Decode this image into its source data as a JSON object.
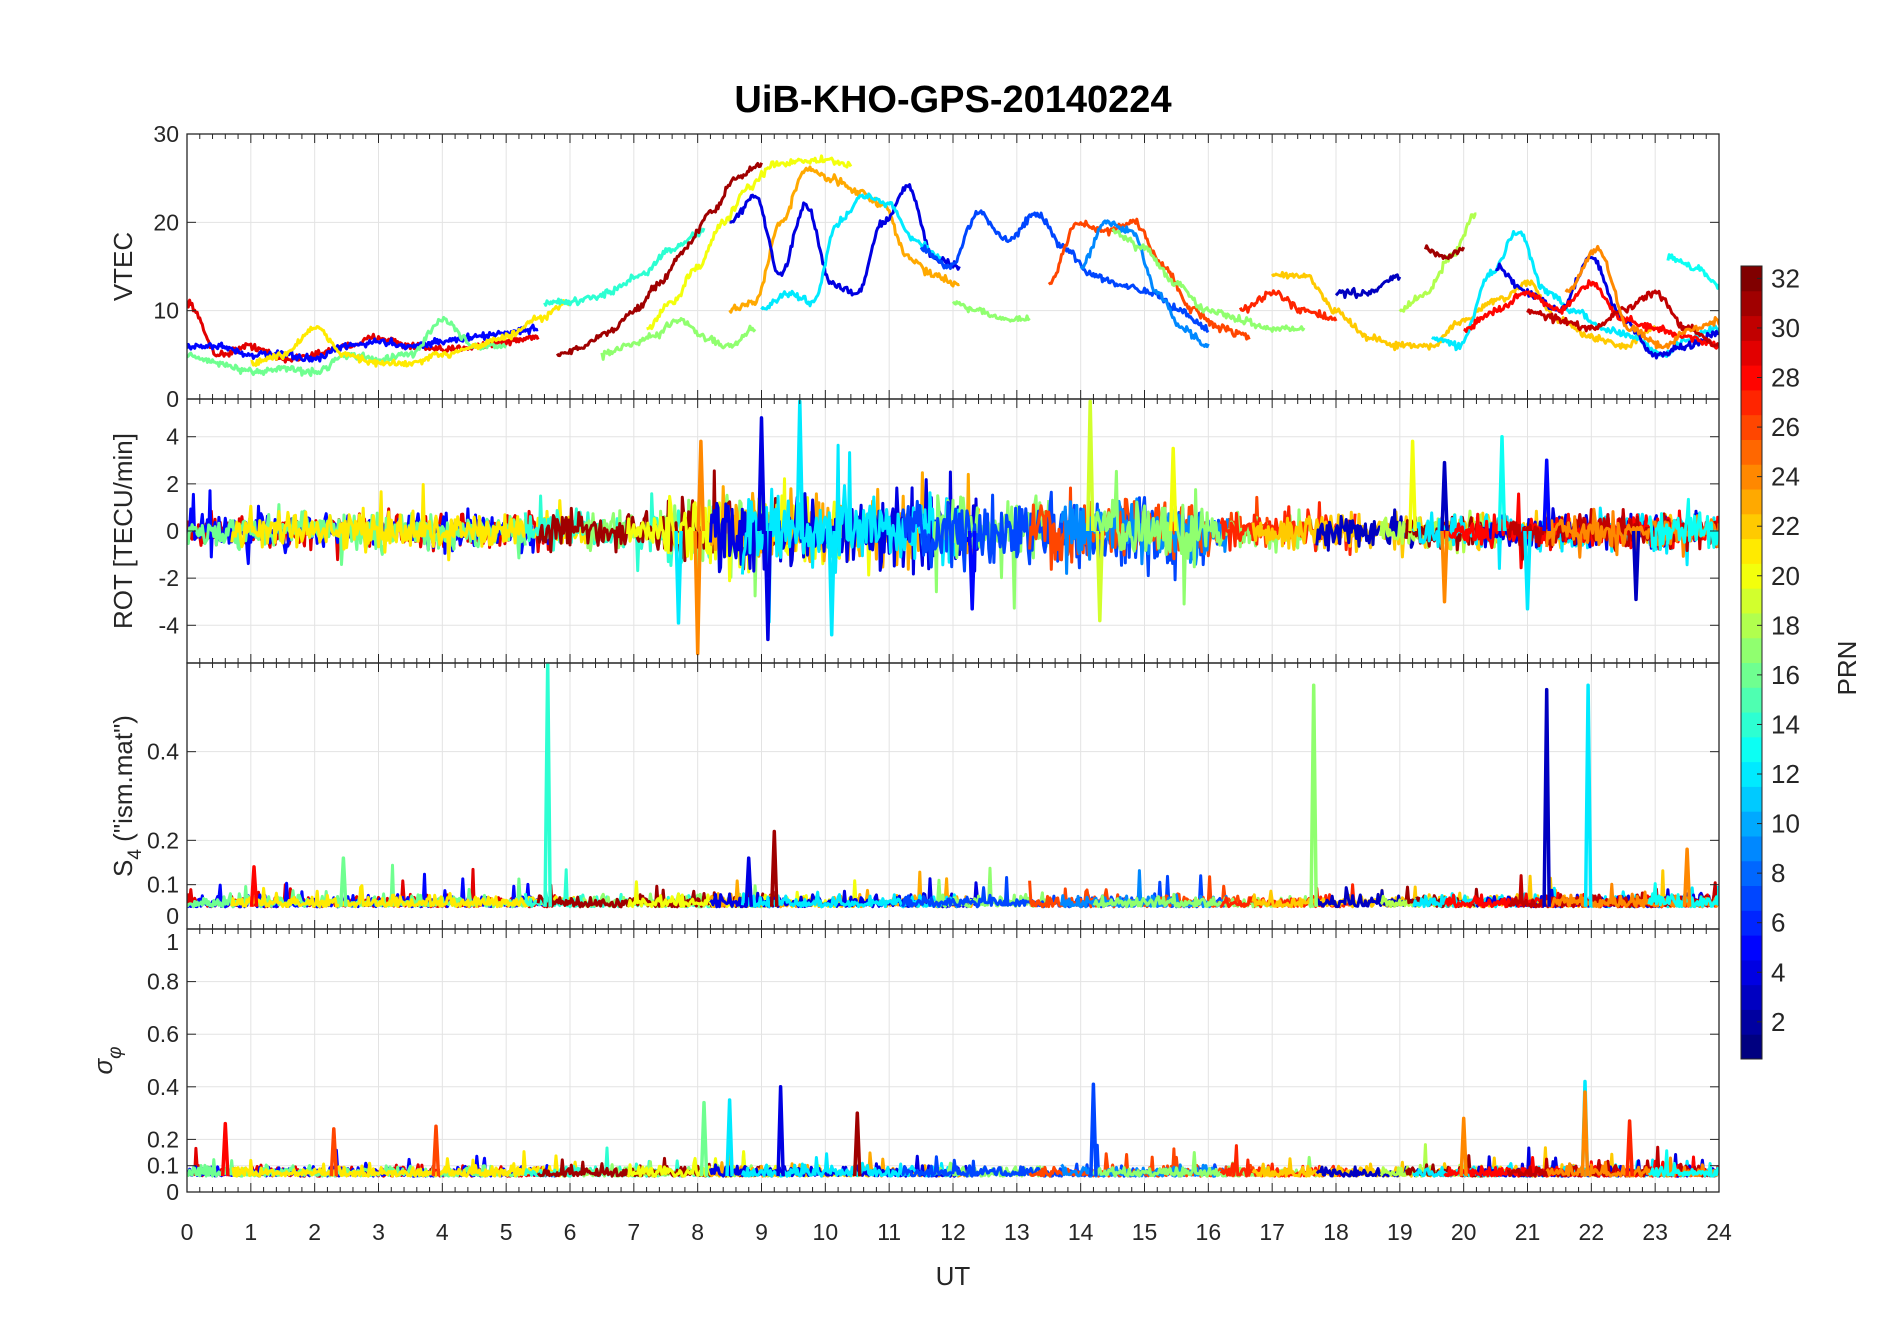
{
  "chart_data": {
    "type": "line",
    "title": "UiB-KHO-GPS-20140224",
    "xlabel": "UT",
    "xlim": [
      0,
      24
    ],
    "xticks": [
      0,
      1,
      2,
      3,
      4,
      5,
      6,
      7,
      8,
      9,
      10,
      11,
      12,
      13,
      14,
      15,
      16,
      17,
      18,
      19,
      20,
      21,
      22,
      23,
      24
    ],
    "grid": true,
    "colorbar": {
      "label": "PRN",
      "range": [
        1,
        32
      ],
      "levels": 32,
      "colormap": "jet",
      "ticks": [
        2,
        4,
        6,
        8,
        10,
        12,
        14,
        16,
        18,
        20,
        22,
        24,
        26,
        28,
        30,
        32
      ],
      "placement": "right"
    },
    "panels": [
      {
        "name": "VTEC",
        "ylabel": "VTEC",
        "ylim": [
          0,
          30
        ],
        "yticks": [
          0,
          10,
          20,
          30
        ]
      },
      {
        "name": "ROT",
        "ylabel": "ROT [TECU/min]",
        "ylim": [
          -5.6,
          5.6
        ],
        "yticks": [
          -4,
          -2,
          0,
          2,
          4
        ],
        "noise_level": 0.6,
        "active_noise_level": 1.2,
        "active_window": [
          7.5,
          16
        ]
      },
      {
        "name": "S4",
        "ylabel": "S",
        "ylabel_sub": "4",
        "ylabel_suffix": " (\"ism.mat\")",
        "ylim": [
          0,
          0.6
        ],
        "yticks": [
          0,
          0.1,
          0.2,
          0.4
        ],
        "baseline": 0.05,
        "noise_level": 0.02
      },
      {
        "name": "sigma_phi",
        "ylabel": "σ",
        "ylabel_sub": "φ",
        "ylim": [
          0,
          1
        ],
        "yticks": [
          0,
          0.1,
          0.2,
          0.4,
          0.6,
          0.8,
          1
        ],
        "baseline": 0.06,
        "noise_level": 0.03
      }
    ],
    "vtec_arcs": [
      {
        "prn": 29,
        "t0": 0.0,
        "step": 0.5,
        "values": [
          11,
          5,
          6,
          4.5,
          5,
          6,
          7,
          6,
          5.5,
          6,
          6.5,
          7
        ]
      },
      {
        "prn": 5,
        "t0": 0.0,
        "step": 0.5,
        "values": [
          6,
          6,
          5,
          5,
          4.5,
          6,
          6.5,
          6,
          6.5,
          7,
          7.5,
          8
        ]
      },
      {
        "prn": 16,
        "t0": 0.0,
        "step": 0.5,
        "values": [
          5,
          4,
          3,
          3.5,
          3,
          5,
          4.5,
          5,
          9,
          6,
          6
        ]
      },
      {
        "prn": 21,
        "t0": 1.0,
        "step": 0.5,
        "values": [
          4,
          5,
          8,
          5,
          4,
          4,
          5,
          6,
          7,
          9,
          11
        ]
      },
      {
        "prn": 14,
        "t0": 5.6,
        "step": 0.5,
        "values": [
          11,
          11,
          12,
          14,
          17,
          19
        ]
      },
      {
        "prn": 17,
        "t0": 6.5,
        "step": 0.4,
        "values": [
          5,
          6,
          7,
          9,
          7,
          6,
          8
        ]
      },
      {
        "prn": 31,
        "t0": 5.8,
        "step": 0.4,
        "values": [
          5,
          6,
          7.5,
          10,
          13,
          17,
          21,
          25,
          26.5
        ]
      },
      {
        "prn": 20,
        "t0": 7.2,
        "step": 0.4,
        "values": [
          8,
          11,
          15,
          20,
          24,
          26.5,
          27,
          27,
          26.5
        ]
      },
      {
        "prn": 23,
        "t0": 8.5,
        "step": 0.4,
        "values": [
          10,
          11,
          20,
          26,
          25,
          23.5,
          22,
          16,
          14,
          13
        ]
      },
      {
        "prn": 4,
        "t0": 8.5,
        "step": 0.4,
        "values": [
          20,
          23,
          14,
          22,
          13,
          12,
          20,
          24,
          16,
          15
        ]
      },
      {
        "prn": 12,
        "t0": 9.0,
        "step": 0.4,
        "values": [
          10,
          12,
          11,
          20,
          23,
          22,
          18,
          16
        ]
      },
      {
        "prn": 17,
        "t0": 12.0,
        "step": 0.4,
        "values": [
          11,
          10,
          9,
          9
        ]
      },
      {
        "prn": 7,
        "t0": 11.5,
        "step": 0.45,
        "values": [
          17,
          15,
          21,
          18,
          21,
          17,
          14,
          13,
          12,
          10,
          8
        ]
      },
      {
        "prn": 26,
        "t0": 13.5,
        "step": 0.45,
        "values": [
          13,
          20,
          19,
          20,
          15,
          10,
          8,
          7
        ]
      },
      {
        "prn": 9,
        "t0": 14.0,
        "step": 0.4,
        "values": [
          15,
          20,
          19,
          12,
          8,
          6
        ]
      },
      {
        "prn": 17,
        "t0": 14.5,
        "step": 0.5,
        "values": [
          19,
          17,
          13,
          10,
          9,
          8,
          8
        ]
      },
      {
        "prn": 27,
        "t0": 16.5,
        "step": 0.5,
        "values": [
          10,
          12,
          10,
          9
        ]
      },
      {
        "prn": 22,
        "t0": 17.0,
        "step": 0.5,
        "values": [
          14,
          14,
          10,
          7,
          6,
          6,
          9,
          11,
          13,
          9,
          7,
          6,
          8
        ]
      },
      {
        "prn": 3,
        "t0": 18.0,
        "step": 0.5,
        "values": [
          12,
          12,
          14
        ]
      },
      {
        "prn": 18,
        "t0": 19.0,
        "step": 0.4,
        "values": [
          10,
          12,
          16,
          21
        ]
      },
      {
        "prn": 31,
        "t0": 19.4,
        "step": 0.3,
        "values": [
          17,
          16,
          17
        ]
      },
      {
        "prn": 12,
        "t0": 19.5,
        "step": 0.45,
        "values": [
          7,
          6,
          14,
          19,
          12,
          10,
          8,
          7,
          5,
          7,
          8
        ]
      },
      {
        "prn": 4,
        "t0": 20.5,
        "step": 0.5,
        "values": [
          15,
          12,
          10,
          16,
          9,
          5,
          6,
          7.5
        ]
      },
      {
        "prn": 28,
        "t0": 20.0,
        "step": 0.5,
        "values": [
          8,
          10,
          12,
          10,
          13,
          9,
          8,
          7,
          6
        ]
      },
      {
        "prn": 30,
        "t0": 21.0,
        "step": 0.5,
        "values": [
          10,
          9,
          8,
          10,
          12,
          8,
          6
        ]
      },
      {
        "prn": 24,
        "t0": 21.6,
        "step": 0.5,
        "values": [
          12,
          17,
          8,
          6,
          8,
          9
        ]
      },
      {
        "prn": 13,
        "t0": 23.2,
        "step": 0.4,
        "values": [
          16,
          15,
          13
        ]
      }
    ],
    "rot_spikes": [
      {
        "prn": 12,
        "t": 9.6,
        "v": 5.5
      },
      {
        "prn": 4,
        "t": 9.0,
        "v": 4.8
      },
      {
        "prn": 4,
        "t": 9.1,
        "v": -4.6
      },
      {
        "prn": 24,
        "t": 8.0,
        "v": -5.2
      },
      {
        "prn": 24,
        "t": 8.05,
        "v": 3.8
      },
      {
        "prn": 12,
        "t": 7.7,
        "v": -3.9
      },
      {
        "prn": 12,
        "t": 10.1,
        "v": -4.4
      },
      {
        "prn": 19,
        "t": 14.15,
        "v": 5.5
      },
      {
        "prn": 19,
        "t": 14.3,
        "v": -3.8
      },
      {
        "prn": 20,
        "t": 15.45,
        "v": 3.5
      },
      {
        "prn": 20,
        "t": 19.2,
        "v": 3.8
      },
      {
        "prn": 13,
        "t": 20.6,
        "v": 4.0
      },
      {
        "prn": 3,
        "t": 19.7,
        "v": 2.9
      },
      {
        "prn": 5,
        "t": 21.3,
        "v": 3.0
      },
      {
        "prn": 24,
        "t": 19.7,
        "v": -3.0
      },
      {
        "prn": 5,
        "t": 12.3,
        "v": -3.3
      },
      {
        "prn": 12,
        "t": 21.0,
        "v": -3.3
      },
      {
        "prn": 3,
        "t": 22.7,
        "v": -2.9
      }
    ],
    "s4_spikes": [
      {
        "prn": 14,
        "t": 5.65,
        "v": 0.6
      },
      {
        "prn": 17,
        "t": 17.65,
        "v": 0.55
      },
      {
        "prn": 3,
        "t": 21.3,
        "v": 0.54
      },
      {
        "prn": 12,
        "t": 21.95,
        "v": 0.55
      },
      {
        "prn": 31,
        "t": 9.2,
        "v": 0.22
      },
      {
        "prn": 24,
        "t": 23.5,
        "v": 0.18
      },
      {
        "prn": 28,
        "t": 1.05,
        "v": 0.14
      },
      {
        "prn": 16,
        "t": 2.45,
        "v": 0.16
      },
      {
        "prn": 4,
        "t": 8.8,
        "v": 0.16
      }
    ],
    "sigma_spikes": [
      {
        "prn": 4,
        "t": 9.3,
        "v": 0.4
      },
      {
        "prn": 7,
        "t": 14.2,
        "v": 0.41
      },
      {
        "prn": 12,
        "t": 21.9,
        "v": 0.42
      },
      {
        "prn": 24,
        "t": 21.9,
        "v": 0.38
      },
      {
        "prn": 31,
        "t": 10.5,
        "v": 0.3
      },
      {
        "prn": 28,
        "t": 0.6,
        "v": 0.26
      },
      {
        "prn": 16,
        "t": 8.1,
        "v": 0.34
      },
      {
        "prn": 12,
        "t": 8.5,
        "v": 0.35
      },
      {
        "prn": 24,
        "t": 20.0,
        "v": 0.28
      },
      {
        "prn": 26,
        "t": 2.3,
        "v": 0.24
      },
      {
        "prn": 26,
        "t": 3.9,
        "v": 0.25
      },
      {
        "prn": 27,
        "t": 22.6,
        "v": 0.27
      }
    ]
  }
}
